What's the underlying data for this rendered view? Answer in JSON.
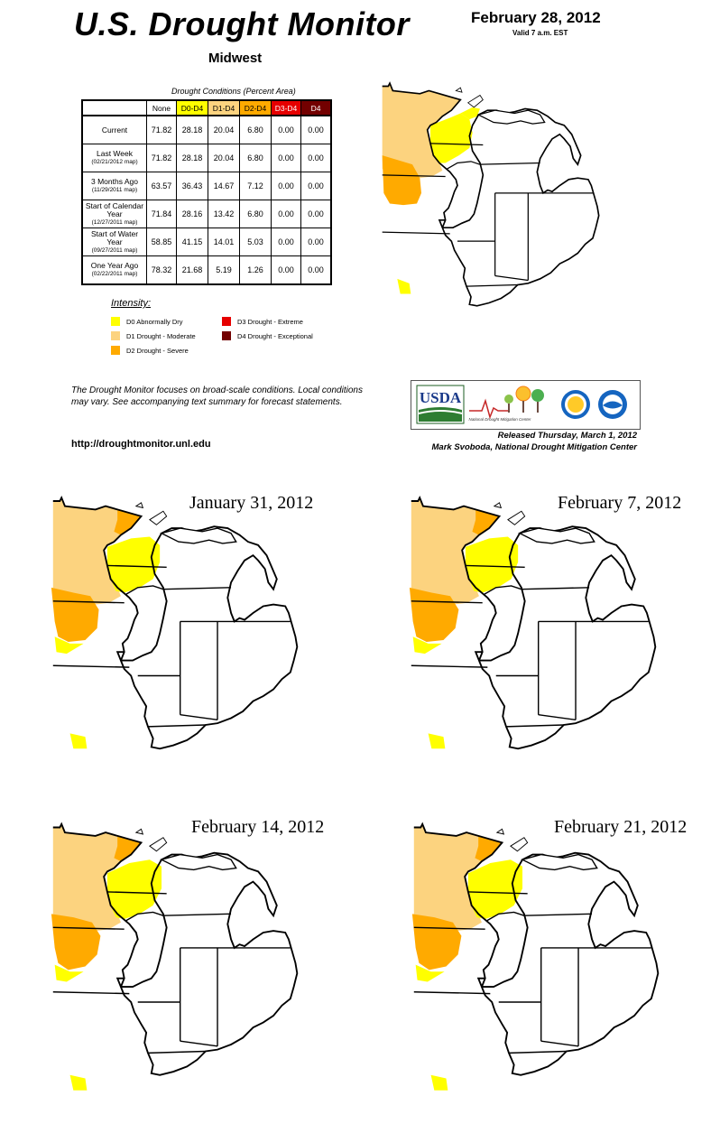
{
  "header": {
    "title": "U.S. Drought Monitor",
    "region": "Midwest",
    "date": "February 28, 2012",
    "valid": "Valid 7 a.m. EST"
  },
  "table": {
    "caption": "Drought Conditions (Percent Area)",
    "columns": [
      "None",
      "D0-D4",
      "D1-D4",
      "D2-D4",
      "D3-D4",
      "D4"
    ],
    "column_colors": [
      "#ffffff",
      "#ffff00",
      "#fcd37f",
      "#ffaa00",
      "#e60000",
      "#730000"
    ],
    "rows": [
      {
        "label": "Current",
        "sub": "",
        "values": [
          "71.82",
          "28.18",
          "20.04",
          "6.80",
          "0.00",
          "0.00"
        ]
      },
      {
        "label": "Last Week",
        "sub": "(02/21/2012 map)",
        "values": [
          "71.82",
          "28.18",
          "20.04",
          "6.80",
          "0.00",
          "0.00"
        ]
      },
      {
        "label": "3 Months Ago",
        "sub": "(11/29/2011 map)",
        "values": [
          "63.57",
          "36.43",
          "14.67",
          "7.12",
          "0.00",
          "0.00"
        ]
      },
      {
        "label": "Start of Calendar Year",
        "sub": "(12/27/2011 map)",
        "values": [
          "71.84",
          "28.16",
          "13.42",
          "6.80",
          "0.00",
          "0.00"
        ]
      },
      {
        "label": "Start of Water Year",
        "sub": "(09/27/2011 map)",
        "values": [
          "58.85",
          "41.15",
          "14.01",
          "5.03",
          "0.00",
          "0.00"
        ]
      },
      {
        "label": "One Year Ago",
        "sub": "(02/22/2011 map)",
        "values": [
          "78.32",
          "21.68",
          "5.19",
          "1.26",
          "0.00",
          "0.00"
        ]
      }
    ]
  },
  "legend": {
    "title": "Intensity:",
    "items": [
      {
        "label": "D0 Abnormally Dry",
        "color": "#ffff00"
      },
      {
        "label": "D1 Drought - Moderate",
        "color": "#fcd37f"
      },
      {
        "label": "D2 Drought - Severe",
        "color": "#ffaa00"
      },
      {
        "label": "D3 Drought - Extreme",
        "color": "#e60000"
      },
      {
        "label": "D4 Drought - Exceptional",
        "color": "#730000"
      }
    ]
  },
  "footer": {
    "note": "The Drought Monitor focuses on broad-scale conditions. Local conditions may vary. See accompanying text summary for forecast statements.",
    "url": "http://droughtmonitor.unl.edu",
    "released": "Released Thursday, March 1, 2012",
    "author": "Mark Svoboda, National Drought Mitigation Center",
    "logos": {
      "usda": "USDA",
      "ndmc": "National Drought Mitigation Center"
    }
  },
  "maps": [
    {
      "title": ""
    },
    {
      "title": "January 31, 2012"
    },
    {
      "title": "February 7, 2012"
    },
    {
      "title": "February 14, 2012"
    },
    {
      "title": "February 21, 2012"
    }
  ]
}
